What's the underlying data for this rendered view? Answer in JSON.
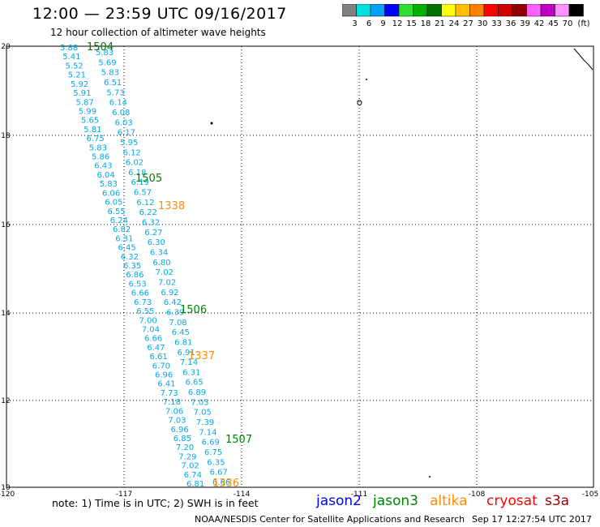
{
  "header": {
    "title": "12:00 — 23:59 UTC 09/16/2017",
    "subtitle": "12 hour collection of altimeter wave heights"
  },
  "scale": {
    "unit": "(ft)",
    "bins": [
      {
        "color": "#808080",
        "label": "3"
      },
      {
        "color": "#00e0e0",
        "label": "6"
      },
      {
        "color": "#00a0ff",
        "label": "9"
      },
      {
        "color": "#0000ff",
        "label": "12"
      },
      {
        "color": "#30e030",
        "label": "15"
      },
      {
        "color": "#00b000",
        "label": "18"
      },
      {
        "color": "#007000",
        "label": "21"
      },
      {
        "color": "#ffff00",
        "label": "24"
      },
      {
        "color": "#ffc000",
        "label": "27"
      },
      {
        "color": "#ff8000",
        "label": "30"
      },
      {
        "color": "#ff0000",
        "label": "33"
      },
      {
        "color": "#d00000",
        "label": "36"
      },
      {
        "color": "#900000",
        "label": "39"
      },
      {
        "color": "#ff60ff",
        "label": "42"
      },
      {
        "color": "#c000c0",
        "label": "45"
      },
      {
        "color": "#ff90ff",
        "label": "70"
      },
      {
        "color": "#000000",
        "label": ""
      }
    ]
  },
  "axes": {
    "x_ticks": [
      "-120",
      "-117",
      "-114",
      "-111",
      "-108",
      "-105"
    ],
    "y_ticks": [
      "20",
      "18",
      "16",
      "14",
      "12",
      "10"
    ]
  },
  "colors": {
    "jason2": "#0000ff",
    "jason3": "#008000",
    "altika": "#ff8c00",
    "cryosat": "#ff0000",
    "s3a": "#a00000",
    "wave": "#00a8e8"
  },
  "passes": [
    {
      "label": "1504",
      "sat": "jason3"
    },
    {
      "label": "1505",
      "sat": "jason3"
    },
    {
      "label": "1338",
      "sat": "altika"
    },
    {
      "label": "1506",
      "sat": "jason3"
    },
    {
      "label": "1337",
      "sat": "altika"
    },
    {
      "label": "1507",
      "sat": "jason3"
    },
    {
      "label": "1336",
      "sat": "altika"
    }
  ],
  "wave_track_a": [
    "5.88",
    "5.41",
    "5.52",
    "5.21",
    "5.92",
    "5.91",
    "5.87",
    "5.99",
    "5.65",
    "5.81",
    "6.75",
    "5.83",
    "5.86",
    "6.43",
    "6.04",
    "5.83",
    "6.06",
    "6.05",
    "6.55",
    "6.24",
    "6.82",
    "6.31",
    "6.45",
    "6.32",
    "6.35",
    "6.86",
    "6.53",
    "6.66",
    "6.73",
    "6.55",
    "7.00",
    "7.04",
    "6.66",
    "6.47",
    "6.61",
    "6.70",
    "6.96",
    "6.41",
    "7.73",
    "7.18",
    "7.06",
    "7.03",
    "6.96",
    "6.85",
    "7.20",
    "7.29",
    "7.02",
    "6.74",
    "6.81"
  ],
  "wave_track_b": [
    "5.83",
    "5.69",
    "5.83",
    "6.51",
    "5.73",
    "6.14",
    "6.08",
    "6.03",
    "6.17",
    "5.95",
    "6.12",
    "6.02",
    "6.18",
    "6.19",
    "6.57",
    "6.12",
    "6.22",
    "6.32",
    "6.27",
    "6.30",
    "6.34",
    "6.80",
    "7.02",
    "7.02",
    "6.92",
    "6.42",
    "6.39",
    "7.08",
    "6.45",
    "6.81",
    "6.91",
    "7.14",
    "6.31",
    "6.65",
    "6.89",
    "7.03",
    "7.05",
    "7.39",
    "7.14",
    "6.69",
    "6.75",
    "6.35",
    "6.67",
    "6.66"
  ],
  "footer": {
    "note": "note: 1) Time is in UTC; 2) SWH is in feet",
    "satellites": [
      {
        "name": "jason2",
        "color": "#0000ff"
      },
      {
        "name": "jason3",
        "color": "#008000"
      },
      {
        "name": "altika",
        "color": "#ff8c00"
      },
      {
        "name": "cryosat",
        "color": "#ff0000"
      },
      {
        "name": "s3a",
        "color": "#a00000"
      }
    ],
    "credit": "NOAA/NESDIS Center for Satellite Applications and Research",
    "timestamp": "Sep 17 12:27:54 UTC 2017"
  }
}
